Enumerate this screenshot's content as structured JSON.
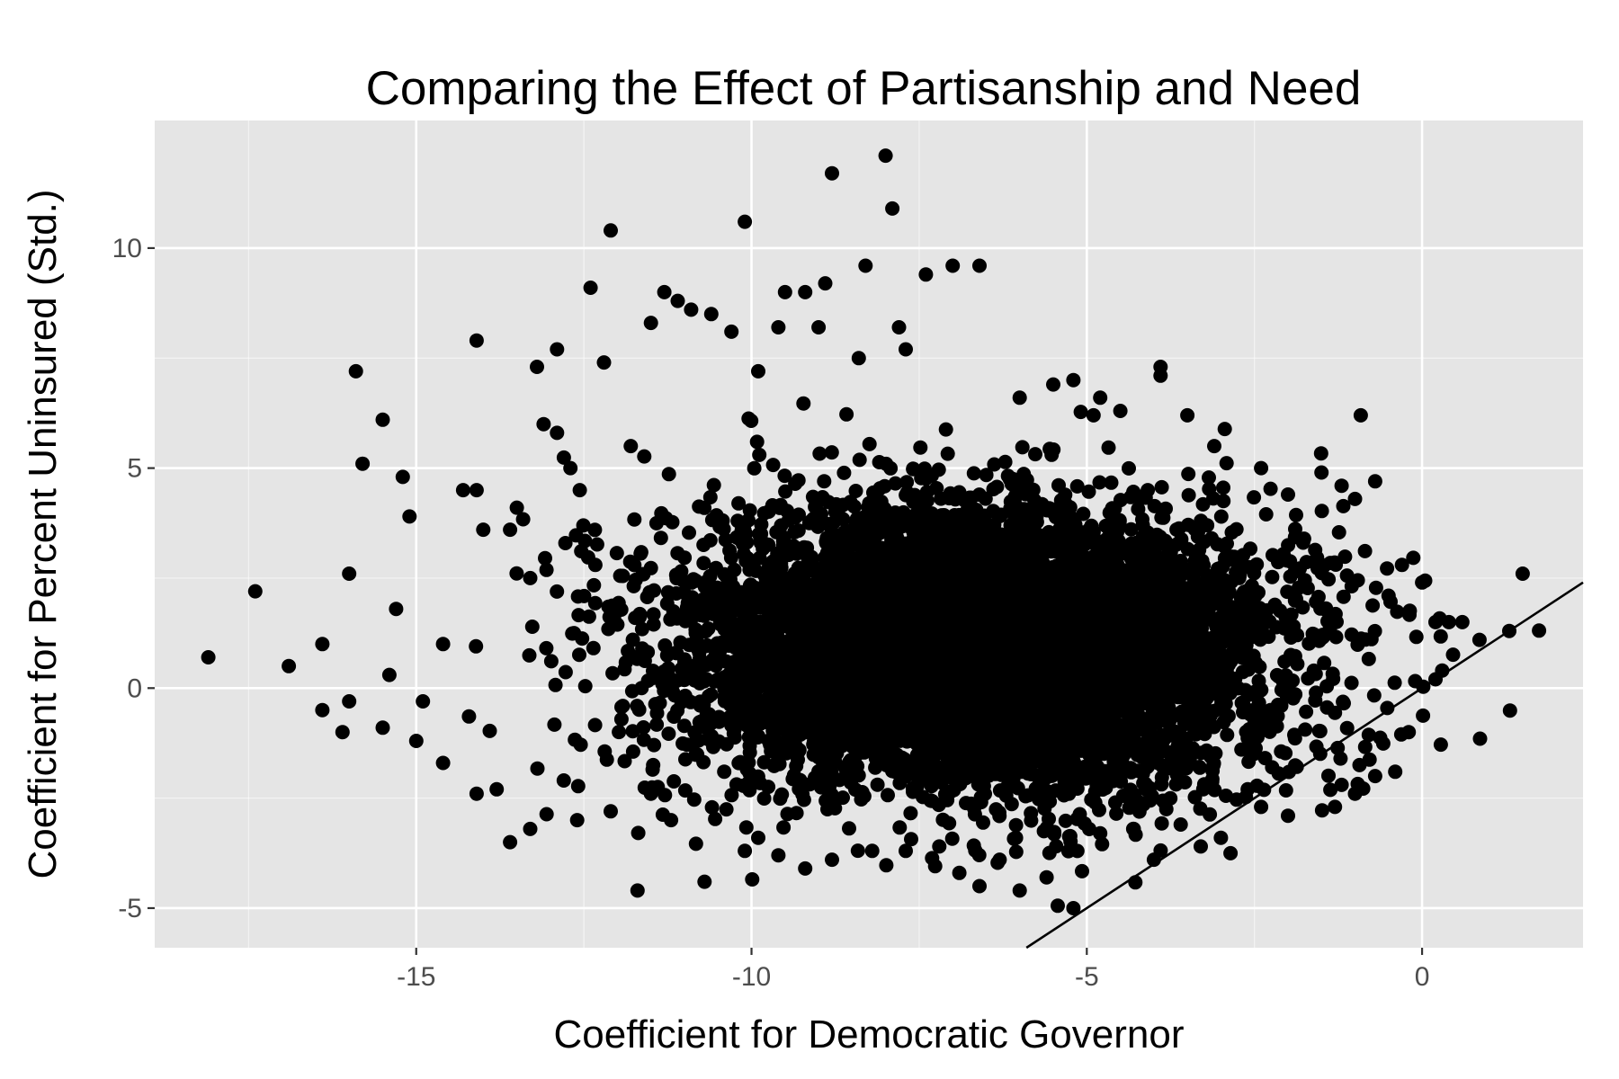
{
  "chart_data": {
    "type": "scatter",
    "title": "Comparing the Effect of Partisanship and Need",
    "xlabel": "Coefficient for Democratic Governor",
    "ylabel": "Coefficient for Percent Uninsured (Std.)",
    "xlim": [
      -18.9,
      2.4
    ],
    "ylim": [
      -5.9,
      12.9
    ],
    "x_ticks": [
      -15,
      -10,
      -5,
      0
    ],
    "y_ticks": [
      -5,
      0,
      5,
      10
    ],
    "x_tick_labels": [
      "-15",
      "-10",
      "-5",
      "0"
    ],
    "y_tick_labels": [
      "-5",
      "0",
      "5",
      "10"
    ],
    "x_minor_ticks": [
      -17.5,
      -12.5,
      -7.5,
      -2.5
    ],
    "y_minor_ticks": [
      -2.5,
      2.5,
      7.5
    ],
    "grid": true,
    "legend": "none",
    "panel_background": "#e5e5e5",
    "grid_color": "#ffffff",
    "point_color": "#000000",
    "line_color": "#000000",
    "reference_line": {
      "slope": 1,
      "intercept": 0
    },
    "cluster": {
      "center_x": -6.6,
      "center_y": 0.9,
      "sd_x": 2.2,
      "sd_y": 1.6,
      "n_points": 7000
    },
    "series": [
      {
        "points": [
          [
            -18.1,
            0.7
          ],
          [
            -17.4,
            2.2
          ],
          [
            -16.9,
            0.5
          ],
          [
            -16.4,
            1.0
          ],
          [
            -16.4,
            -0.5
          ],
          [
            -16.0,
            2.6
          ],
          [
            -16.0,
            -0.3
          ],
          [
            -15.9,
            7.2
          ],
          [
            -15.8,
            5.1
          ],
          [
            -15.5,
            6.1
          ],
          [
            -15.4,
            0.3
          ],
          [
            -15.3,
            1.8
          ],
          [
            -15.2,
            4.8
          ],
          [
            -15.1,
            3.9
          ],
          [
            -14.9,
            -0.3
          ],
          [
            -14.6,
            1.0
          ],
          [
            -14.3,
            4.5
          ],
          [
            -14.1,
            7.9
          ],
          [
            -14.1,
            4.5
          ],
          [
            -14.0,
            3.6
          ],
          [
            -13.6,
            3.6
          ],
          [
            -13.5,
            4.1
          ],
          [
            -13.3,
            2.5
          ],
          [
            -13.2,
            7.3
          ],
          [
            -13.1,
            6.0
          ],
          [
            -12.9,
            7.7
          ],
          [
            -12.9,
            5.8
          ],
          [
            -12.7,
            5.0
          ],
          [
            -12.4,
            9.1
          ],
          [
            -12.2,
            7.4
          ],
          [
            -12.1,
            10.4
          ],
          [
            -11.8,
            5.5
          ],
          [
            -11.5,
            8.3
          ],
          [
            -11.3,
            9.0
          ],
          [
            -11.1,
            8.8
          ],
          [
            -10.9,
            8.6
          ],
          [
            -10.6,
            8.5
          ],
          [
            -10.3,
            8.1
          ],
          [
            -10.1,
            10.6
          ],
          [
            -9.9,
            7.2
          ],
          [
            -9.6,
            8.2
          ],
          [
            -9.5,
            9.0
          ],
          [
            -9.2,
            9.0
          ],
          [
            -9.0,
            8.2
          ],
          [
            -8.9,
            9.2
          ],
          [
            -8.8,
            11.7
          ],
          [
            -8.4,
            7.5
          ],
          [
            -8.3,
            9.6
          ],
          [
            -8.0,
            12.1
          ],
          [
            -7.9,
            10.9
          ],
          [
            -7.8,
            8.2
          ],
          [
            -7.7,
            7.7
          ],
          [
            -7.4,
            9.4
          ],
          [
            -7.0,
            9.6
          ],
          [
            -6.6,
            9.6
          ],
          [
            -6.0,
            6.6
          ],
          [
            -5.5,
            6.9
          ],
          [
            -5.2,
            7.0
          ],
          [
            -4.9,
            6.2
          ],
          [
            -4.8,
            6.6
          ],
          [
            -4.5,
            6.3
          ],
          [
            -3.9,
            7.3
          ],
          [
            -3.9,
            7.1
          ],
          [
            -3.5,
            6.2
          ],
          [
            -3.1,
            5.5
          ],
          [
            -2.4,
            5.0
          ],
          [
            -2.0,
            4.4
          ],
          [
            -1.5,
            4.9
          ],
          [
            -1.2,
            4.6
          ],
          [
            -1.0,
            4.3
          ],
          [
            -0.7,
            4.7
          ],
          [
            -0.5,
            2.1
          ],
          [
            -0.3,
            2.8
          ],
          [
            0.0,
            2.4
          ],
          [
            0.2,
            1.5
          ],
          [
            0.4,
            1.5
          ],
          [
            0.3,
            0.4
          ],
          [
            0.2,
            0.2
          ],
          [
            0.6,
            1.5
          ],
          [
            1.3,
            1.3
          ],
          [
            1.5,
            2.6
          ],
          [
            -0.2,
            -1.0
          ],
          [
            -0.4,
            -1.9
          ],
          [
            -0.7,
            -2.0
          ],
          [
            -1.0,
            -2.4
          ],
          [
            -1.2,
            -2.2
          ],
          [
            -1.3,
            -2.7
          ],
          [
            -2.0,
            -2.9
          ],
          [
            -2.4,
            -2.7
          ],
          [
            -2.6,
            -2.3
          ],
          [
            -3.0,
            -3.4
          ],
          [
            -3.3,
            -3.6
          ],
          [
            -3.6,
            -3.1
          ],
          [
            -4.0,
            -3.9
          ],
          [
            -4.3,
            -3.2
          ],
          [
            -4.8,
            -3.3
          ],
          [
            -5.2,
            -5.0
          ],
          [
            -5.6,
            -4.3
          ],
          [
            -6.0,
            -4.6
          ],
          [
            -6.3,
            -3.9
          ],
          [
            -6.6,
            -4.5
          ],
          [
            -6.9,
            -4.2
          ],
          [
            -7.2,
            -3.6
          ],
          [
            -7.7,
            -3.7
          ],
          [
            -8.2,
            -3.7
          ],
          [
            -8.8,
            -3.9
          ],
          [
            -9.2,
            -4.1
          ],
          [
            -9.6,
            -3.8
          ],
          [
            -10.1,
            -3.7
          ],
          [
            -10.7,
            -4.4
          ],
          [
            -11.2,
            -3.0
          ],
          [
            -11.7,
            -4.6
          ],
          [
            -12.1,
            -2.8
          ],
          [
            -12.6,
            -3.0
          ],
          [
            -13.3,
            -3.2
          ],
          [
            -13.6,
            -3.5
          ],
          [
            -13.8,
            -2.3
          ],
          [
            -14.1,
            -2.4
          ],
          [
            -14.6,
            -1.7
          ],
          [
            -15.0,
            -1.2
          ],
          [
            -15.5,
            -0.9
          ],
          [
            -16.1,
            -1.0
          ],
          [
            -12.8,
            -2.1
          ],
          [
            -11.5,
            -2.4
          ],
          [
            -9.9,
            -3.4
          ]
        ]
      }
    ]
  }
}
